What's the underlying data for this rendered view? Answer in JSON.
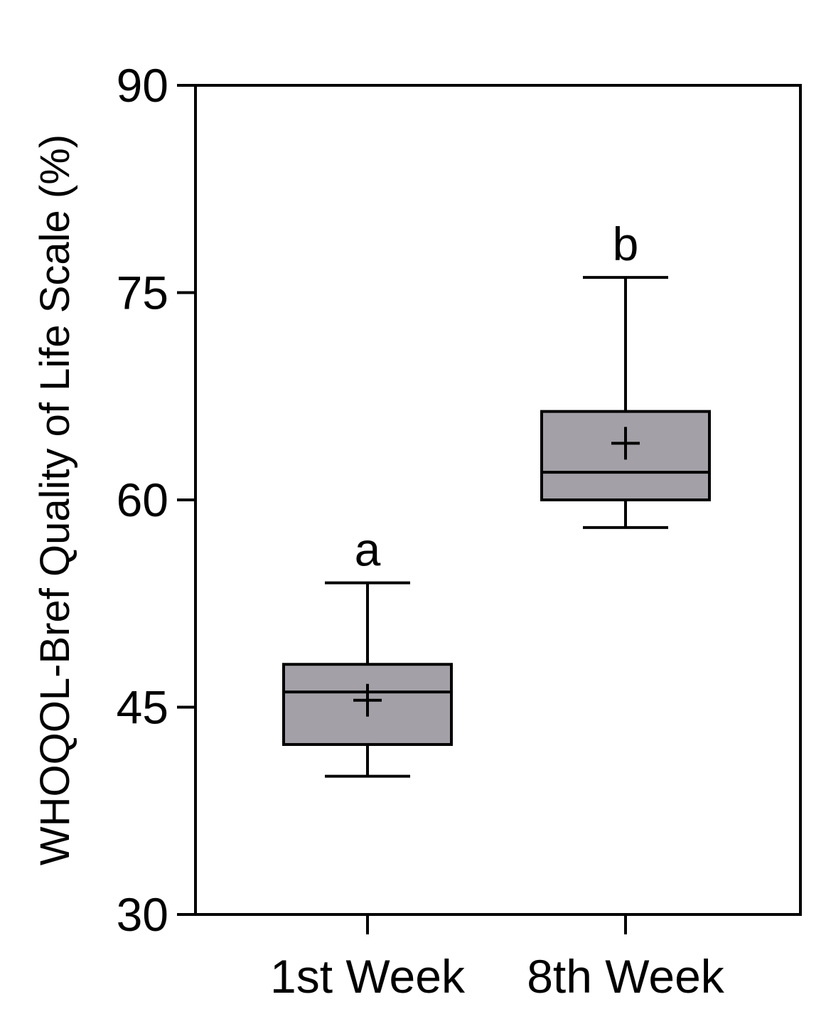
{
  "chart_data": {
    "type": "box",
    "title": "",
    "xlabel": "",
    "ylabel": "WHOQOL-Bref Quality of Life Scale (%)",
    "ylim": [
      30,
      90
    ],
    "yticks": [
      30,
      45,
      60,
      75,
      90
    ],
    "grid": false,
    "box_color": "#a3a1a7",
    "categories": [
      "1st Week",
      "8th Week"
    ],
    "boxes": [
      {
        "category": "1st Week",
        "whisker_low": 40,
        "q1": 42.3,
        "median": 46.1,
        "q3": 48.1,
        "whisker_high": 54,
        "mean": 45.5,
        "significance": "a"
      },
      {
        "category": "8th Week",
        "whisker_low": 58,
        "q1": 60,
        "median": 62,
        "q3": 66.4,
        "whisker_high": 76.1,
        "mean": 64.1,
        "significance": "b"
      }
    ]
  }
}
